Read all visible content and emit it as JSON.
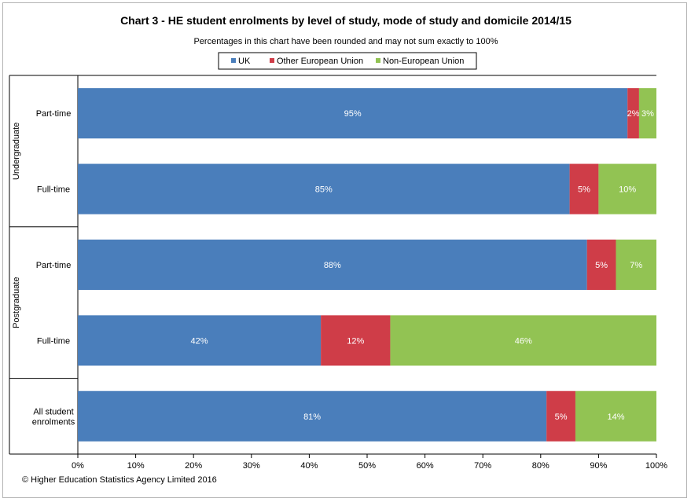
{
  "chart_data": {
    "type": "bar",
    "orientation": "horizontal",
    "stacked": true,
    "title": "Chart 3 - HE student enrolments by level of study, mode of study and domicile 2014/15",
    "subtitle": "Percentages in this chart have been rounded and may not sum exactly to 100%",
    "legend_position": "top",
    "xlim": [
      0,
      100
    ],
    "x_ticks": [
      "0%",
      "10%",
      "20%",
      "30%",
      "40%",
      "50%",
      "60%",
      "70%",
      "80%",
      "90%",
      "100%"
    ],
    "grid": false,
    "groups": [
      {
        "label": "Undergraduate",
        "categories": [
          "Part-time",
          "Full-time"
        ]
      },
      {
        "label": "Postgraduate",
        "categories": [
          "Part-time",
          "Full-time"
        ]
      },
      {
        "label": "",
        "categories": [
          "All student enrolments"
        ]
      }
    ],
    "series": [
      {
        "name": "UK",
        "color": "#4a7ebb",
        "values": [
          95,
          85,
          88,
          42,
          81
        ],
        "labels": [
          "95%",
          "85%",
          "88%",
          "42%",
          "81%"
        ]
      },
      {
        "name": "Other European Union",
        "color": "#cf3d48",
        "values": [
          2,
          5,
          5,
          12,
          5
        ],
        "labels": [
          "2%",
          "5%",
          "5%",
          "12%",
          "5%"
        ]
      },
      {
        "name": "Non-European Union",
        "color": "#92c353",
        "values": [
          3,
          10,
          7,
          46,
          14
        ],
        "labels": [
          "3%",
          "10%",
          "7%",
          "46%",
          "14%"
        ]
      }
    ]
  },
  "footer": {
    "copyright": "© Higher Education Statistics Agency Limited 2016"
  }
}
